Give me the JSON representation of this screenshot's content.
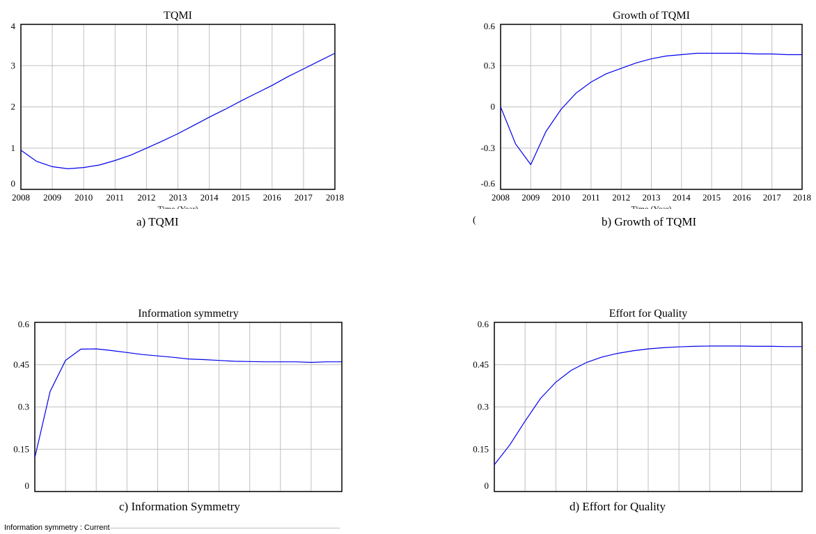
{
  "chart_data": [
    {
      "id": "a",
      "type": "line",
      "title": "TQMI",
      "xlabel": "Time (Year)",
      "x": [
        2008,
        2008.5,
        2009,
        2009.5,
        2010,
        2010.5,
        2011,
        2011.5,
        2012,
        2012.5,
        2013,
        2013.5,
        2014,
        2014.5,
        2015,
        2015.5,
        2016,
        2016.5,
        2017,
        2017.5,
        2018
      ],
      "y": [
        0.95,
        0.68,
        0.55,
        0.5,
        0.53,
        0.59,
        0.7,
        0.83,
        1.0,
        1.17,
        1.35,
        1.55,
        1.75,
        1.94,
        2.14,
        2.33,
        2.52,
        2.73,
        2.92,
        3.11,
        3.3
      ],
      "xticks": [
        "2008",
        "2009",
        "2010",
        "2011",
        "2012",
        "2013",
        "2014",
        "2015",
        "2016",
        "2017",
        "2018"
      ],
      "yticks": [
        "4",
        "3",
        "2",
        "1",
        "0"
      ],
      "xlim": [
        2008,
        2018
      ],
      "ylim": [
        0,
        4
      ],
      "grid": true,
      "color": "#0000ee",
      "caption": "a)  TQMI"
    },
    {
      "id": "b",
      "type": "line",
      "title": "Growth of TQMI",
      "xlabel": "Time (Year)",
      "x": [
        2008,
        2008.5,
        2009,
        2009.5,
        2010,
        2010.5,
        2011,
        2011.5,
        2012,
        2012.5,
        2013,
        2013.5,
        2014,
        2014.5,
        2015,
        2015.5,
        2016,
        2016.5,
        2017,
        2017.5,
        2018
      ],
      "y": [
        0.0,
        -0.27,
        -0.42,
        -0.18,
        -0.02,
        0.1,
        0.18,
        0.24,
        0.28,
        0.32,
        0.35,
        0.37,
        0.38,
        0.39,
        0.39,
        0.39,
        0.39,
        0.385,
        0.385,
        0.38,
        0.38
      ],
      "xticks": [
        "2008",
        "2009",
        "2010",
        "2011",
        "2012",
        "2013",
        "2014",
        "2015",
        "2016",
        "2017",
        "2018"
      ],
      "yticks": [
        "0.6",
        "0.3",
        "0",
        "-0.3",
        "-0.6"
      ],
      "xlim": [
        2008,
        2018
      ],
      "ylim": [
        -0.6,
        0.6
      ],
      "grid": true,
      "color": "#0000ee",
      "caption": "b)  Growth of TQMI"
    },
    {
      "id": "c",
      "type": "line",
      "title": "Information symmetry",
      "xlabel": "",
      "x": [
        2008,
        2008.5,
        2009,
        2009.5,
        2010,
        2010.5,
        2011,
        2011.5,
        2012,
        2012.5,
        2013,
        2013.5,
        2014,
        2014.5,
        2015,
        2015.5,
        2016,
        2016.5,
        2017,
        2017.5,
        2018
      ],
      "y": [
        0.12,
        0.355,
        0.465,
        0.505,
        0.506,
        0.5,
        0.493,
        0.486,
        0.481,
        0.476,
        0.47,
        0.468,
        0.465,
        0.462,
        0.461,
        0.46,
        0.46,
        0.46,
        0.458,
        0.46,
        0.46
      ],
      "xticks": [],
      "yticks": [
        "0.6",
        "0.45",
        "0.3",
        "0.15",
        "0"
      ],
      "xlim": [
        2008,
        2018
      ],
      "ylim": [
        0,
        0.6
      ],
      "grid": true,
      "color": "#0000ee",
      "caption": "c)  Information Symmetry"
    },
    {
      "id": "d",
      "type": "line",
      "title": "Effort for Quality",
      "xlabel": "",
      "x": [
        2008,
        2008.5,
        2009,
        2009.5,
        2010,
        2010.5,
        2011,
        2011.5,
        2012,
        2012.5,
        2013,
        2013.5,
        2014,
        2014.5,
        2015,
        2015.5,
        2016,
        2016.5,
        2017,
        2017.5,
        2018
      ],
      "y": [
        0.095,
        0.165,
        0.25,
        0.33,
        0.388,
        0.43,
        0.458,
        0.477,
        0.49,
        0.499,
        0.506,
        0.51,
        0.513,
        0.515,
        0.516,
        0.516,
        0.516,
        0.515,
        0.515,
        0.514,
        0.514
      ],
      "xticks": [],
      "yticks": [
        "0.6",
        "0.45",
        "0.3",
        "0.15",
        "0"
      ],
      "xlim": [
        2008,
        2018
      ],
      "ylim": [
        0,
        0.6
      ],
      "grid": true,
      "color": "#0000ee",
      "caption": "d)  Effort for Quality"
    }
  ],
  "footer": {
    "text": "Information symmetry : Current"
  },
  "stray_mark": "("
}
